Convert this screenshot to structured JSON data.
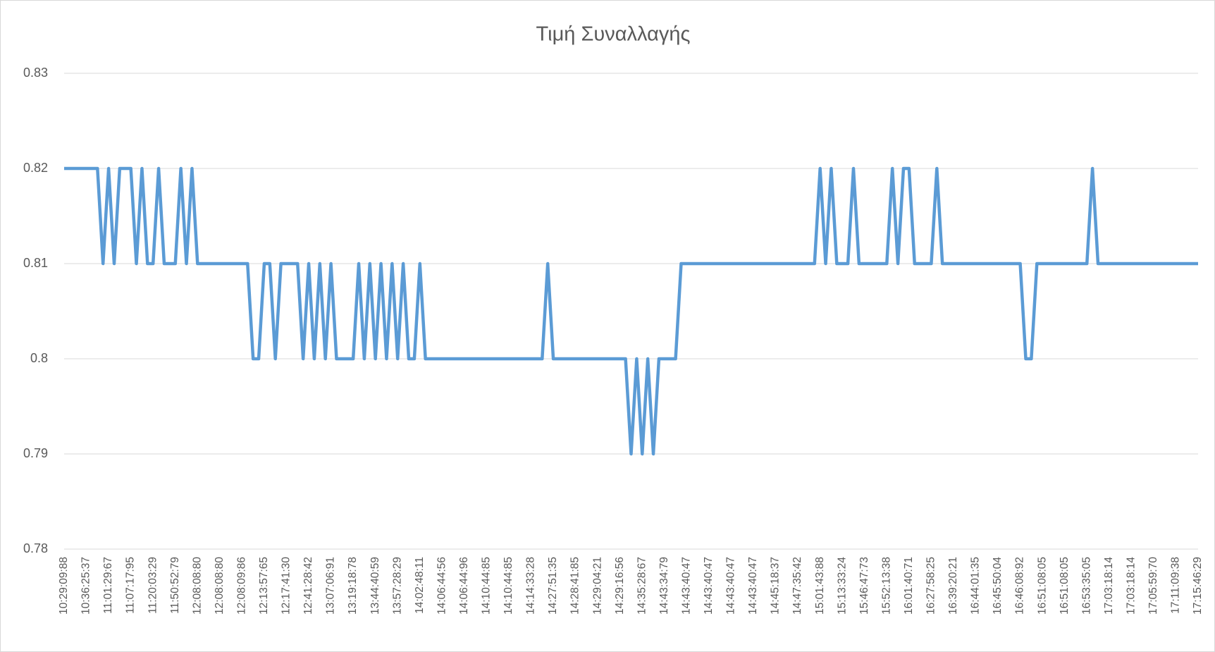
{
  "chart_data": {
    "type": "line",
    "title": "Τιμή Συναλλαγής",
    "categories": [
      "10:29:09:88",
      null,
      null,
      null,
      "10:36:25:37",
      null,
      null,
      null,
      "11:01:29:67",
      null,
      null,
      null,
      "11:07:17:95",
      null,
      null,
      null,
      "11:20:03:29",
      null,
      null,
      null,
      "11:50:52:79",
      null,
      null,
      null,
      "12:08:08:80",
      null,
      null,
      null,
      "12:08:08:80",
      null,
      null,
      null,
      "12:08:09:86",
      null,
      null,
      null,
      "12:13:57:65",
      null,
      null,
      null,
      "12:17:41:30",
      null,
      null,
      null,
      "12:41:28:42",
      null,
      null,
      null,
      "13:07:06:91",
      null,
      null,
      null,
      "13:19:18:78",
      null,
      null,
      null,
      "13:44:40:59",
      null,
      null,
      null,
      "13:57:28:29",
      null,
      null,
      null,
      "14:02:48:11",
      null,
      null,
      null,
      "14:06:44:56",
      null,
      null,
      null,
      "14:06:44:96",
      null,
      null,
      null,
      "14:10:44:85",
      null,
      null,
      null,
      "14:10:44:85",
      null,
      null,
      null,
      "14:14:33:28",
      null,
      null,
      null,
      "14:27:51:35",
      null,
      null,
      null,
      "14:28:41:85",
      null,
      null,
      null,
      "14:29:04:21",
      null,
      null,
      null,
      "14:29:16:56",
      null,
      null,
      null,
      "14:35:28:67",
      null,
      null,
      null,
      "14:43:34:79",
      null,
      null,
      null,
      "14:43:40:47",
      null,
      null,
      null,
      "14:43:40:47",
      null,
      null,
      null,
      "14:43:40:47",
      null,
      null,
      null,
      "14:43:40:47",
      null,
      null,
      null,
      "14:45:18:37",
      null,
      null,
      null,
      "14:47:35:42",
      null,
      null,
      null,
      "15:01:43:88",
      null,
      null,
      null,
      "15:13:33:24",
      null,
      null,
      null,
      "15:46:47:73",
      null,
      null,
      null,
      "15:52:13:38",
      null,
      null,
      null,
      "16:01:40:71",
      null,
      null,
      null,
      "16:27:58:25",
      null,
      null,
      null,
      "16:39:20:21",
      null,
      null,
      null,
      "16:44:01:35",
      null,
      null,
      null,
      "16:45:50:04",
      null,
      null,
      null,
      "16:46:08:92",
      null,
      null,
      null,
      "16:51:08:05",
      null,
      null,
      null,
      "16:51:08:05",
      null,
      null,
      null,
      "16:53:35:05",
      null,
      null,
      null,
      "17:03:18:14",
      null,
      null,
      null,
      "17:03:18:14",
      null,
      null,
      null,
      "17:05:59:70",
      null,
      null,
      null,
      "17:11:09:38",
      null,
      null,
      null,
      "17:15:46:29"
    ],
    "values": [
      0.82,
      0.82,
      0.82,
      0.82,
      0.82,
      0.82,
      0.82,
      0.81,
      0.82,
      0.81,
      0.82,
      0.82,
      0.82,
      0.81,
      0.82,
      0.81,
      0.81,
      0.82,
      0.81,
      0.81,
      0.81,
      0.82,
      0.81,
      0.82,
      0.81,
      0.81,
      0.81,
      0.81,
      0.81,
      0.81,
      0.81,
      0.81,
      0.81,
      0.81,
      0.8,
      0.8,
      0.81,
      0.81,
      0.8,
      0.81,
      0.81,
      0.81,
      0.81,
      0.8,
      0.81,
      0.8,
      0.81,
      0.8,
      0.81,
      0.8,
      0.8,
      0.8,
      0.8,
      0.81,
      0.8,
      0.81,
      0.8,
      0.81,
      0.8,
      0.81,
      0.8,
      0.81,
      0.8,
      0.8,
      0.81,
      0.8,
      0.8,
      0.8,
      0.8,
      0.8,
      0.8,
      0.8,
      0.8,
      0.8,
      0.8,
      0.8,
      0.8,
      0.8,
      0.8,
      0.8,
      0.8,
      0.8,
      0.8,
      0.8,
      0.8,
      0.8,
      0.8,
      0.81,
      0.8,
      0.8,
      0.8,
      0.8,
      0.8,
      0.8,
      0.8,
      0.8,
      0.8,
      0.8,
      0.8,
      0.8,
      0.8,
      0.8,
      0.79,
      0.8,
      0.79,
      0.8,
      0.79,
      0.8,
      0.8,
      0.8,
      0.8,
      0.81,
      0.81,
      0.81,
      0.81,
      0.81,
      0.81,
      0.81,
      0.81,
      0.81,
      0.81,
      0.81,
      0.81,
      0.81,
      0.81,
      0.81,
      0.81,
      0.81,
      0.81,
      0.81,
      0.81,
      0.81,
      0.81,
      0.81,
      0.81,
      0.81,
      0.82,
      0.81,
      0.82,
      0.81,
      0.81,
      0.81,
      0.82,
      0.81,
      0.81,
      0.81,
      0.81,
      0.81,
      0.81,
      0.82,
      0.81,
      0.82,
      0.82,
      0.81,
      0.81,
      0.81,
      0.81,
      0.82,
      0.81,
      0.81,
      0.81,
      0.81,
      0.81,
      0.81,
      0.81,
      0.81,
      0.81,
      0.81,
      0.81,
      0.81,
      0.81,
      0.81,
      0.81,
      0.8,
      0.8,
      0.81,
      0.81,
      0.81,
      0.81,
      0.81,
      0.81,
      0.81,
      0.81,
      0.81,
      0.81,
      0.82,
      0.81,
      0.81,
      0.81,
      0.81,
      0.81,
      0.81,
      0.81,
      0.81,
      0.81,
      0.81,
      0.81,
      0.81,
      0.81,
      0.81,
      0.81,
      0.81,
      0.81,
      0.81,
      0.81
    ],
    "color": "#5b9bd5",
    "ylim": [
      0.78,
      0.83
    ],
    "yticks": [
      0.78,
      0.79,
      0.8,
      0.81,
      0.82,
      0.83
    ],
    "grid": true
  }
}
